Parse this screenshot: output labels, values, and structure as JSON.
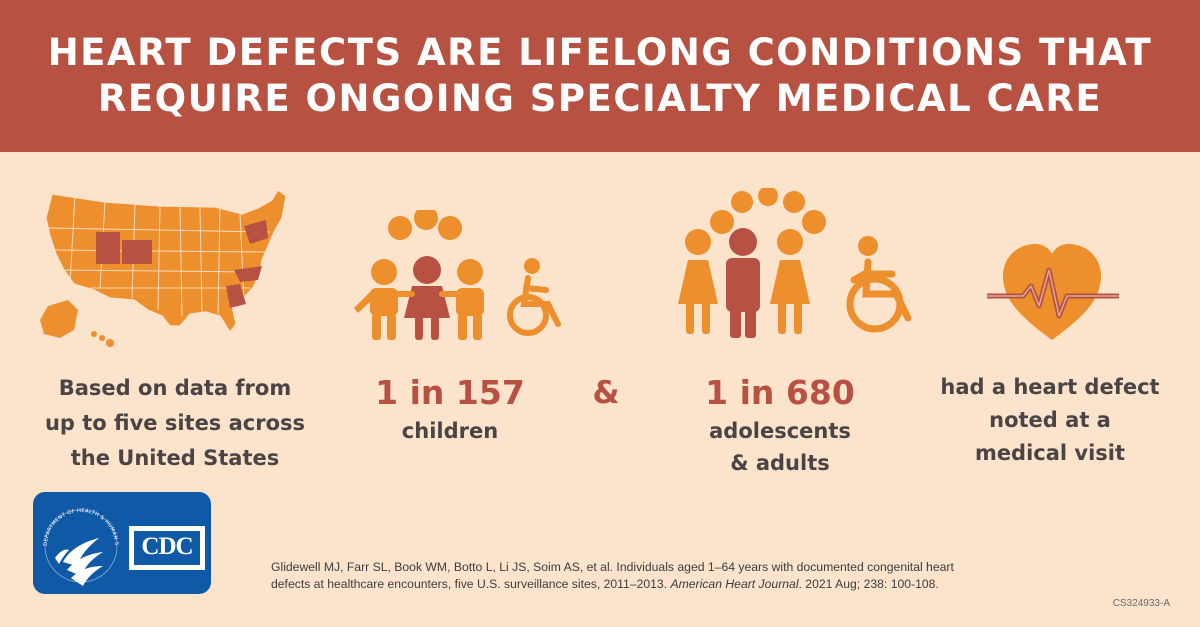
{
  "header": {
    "line1": "HEART DEFECTS ARE LIFELONG CONDITIONS THAT",
    "line2": "REQUIRE ONGOING SPECIALTY MEDICAL CARE"
  },
  "columns": {
    "sites": {
      "line1": "Based on data from",
      "line2": "up to five sites across",
      "line3": "the United States"
    },
    "children": {
      "ratio": "1 in 157",
      "label": "children"
    },
    "ampersand": "&",
    "adults": {
      "ratio": "1 in 680",
      "label1": "adolescents",
      "label2": "& adults"
    },
    "heart": {
      "line1": "had a heart defect",
      "line2": "noted at a",
      "line3": "medical visit"
    }
  },
  "logo": {
    "cdc": "CDC",
    "seal_text": "DEPARTMENT OF HEALTH & HUMAN SERVICES USA"
  },
  "citation": {
    "line1": "Glidewell MJ, Farr SL, Book WM, Botto  L, Li JS, Soim AS, et al. Individuals aged 1–64 years with documented congenital heart",
    "line2_pre": "defects at healthcare encounters, five U.S. surveillance sites, 2011–2013. ",
    "journal": "American Heart Journal",
    "line2_post": ". 2021 Aug; 238: 100-108."
  },
  "code": "CS324933-A",
  "colors": {
    "header_bg": "#b75243",
    "page_bg": "#fce3cc",
    "orange": "#ec8f2c",
    "rust": "#b75243",
    "text": "#4a4444",
    "logo_blue": "#0f59a6"
  },
  "icons": [
    "us-map-icon",
    "children-family-icon",
    "wheelchair-icon",
    "adults-family-icon",
    "heart-pulse-icon",
    "hhs-eagle-icon"
  ]
}
